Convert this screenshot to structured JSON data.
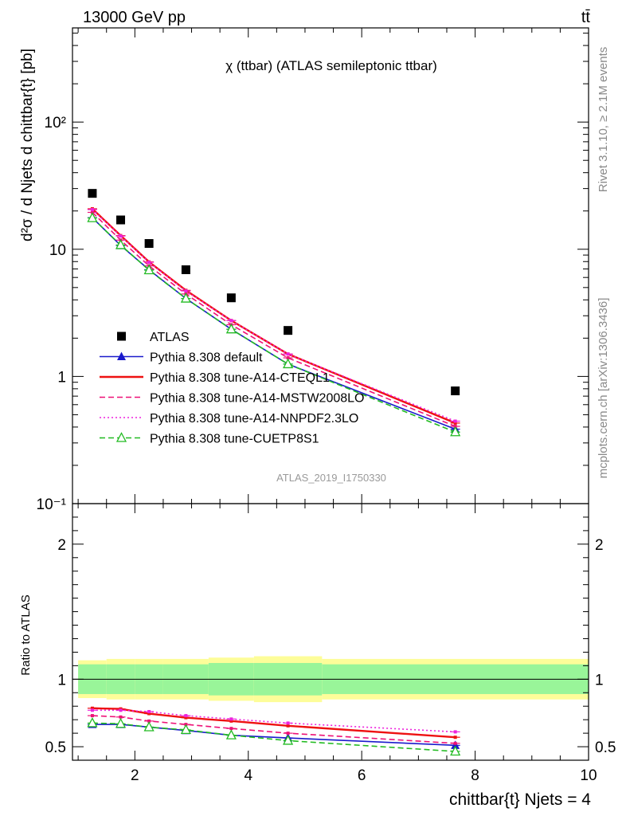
{
  "header": {
    "energy_label": "13000 GeV pp",
    "process_label": "tt̄"
  },
  "side_labels": {
    "rivet": "Rivet 3.1.10, ≥ 2.1M events",
    "mcplots": "mcplots.cern.ch [arXiv:1306.3436]"
  },
  "chart_data": [
    {
      "type": "line",
      "panel": "main",
      "title": "χ (ttbar) (ATLAS semileptonic ttbar)",
      "watermark": "ATLAS_2019_I1750330",
      "ylabel": "d²σ / d Njets d chittbar{t} [pb]",
      "yscale": "log",
      "ylim": [
        0.1,
        550
      ],
      "xlim": [
        0.9,
        10.0
      ],
      "ytick_labels": [
        "10⁻¹",
        "1",
        "10",
        "10²"
      ],
      "legend_position": "lower-left",
      "x": [
        1.25,
        1.75,
        2.25,
        2.9,
        3.7,
        4.7,
        7.65
      ],
      "series": [
        {
          "name": "ATLAS",
          "style": "data",
          "color": "#000000",
          "marker": "square",
          "values": [
            27.5,
            17.0,
            11.1,
            6.9,
            4.15,
            2.3,
            0.77
          ]
        },
        {
          "name": "Pythia 8.308 default",
          "style": "solid",
          "color": "#1a1acc",
          "marker": "triangle",
          "values": [
            17.7,
            10.7,
            6.9,
            4.1,
            2.35,
            1.25,
            0.385
          ]
        },
        {
          "name": "Pythia 8.308 tune-A14-CTEQL1",
          "style": "solid",
          "color": "#ee1111",
          "marker": "none",
          "values": [
            20.8,
            12.8,
            7.95,
            4.75,
            2.75,
            1.5,
            0.43
          ]
        },
        {
          "name": "Pythia 8.308 tune-A14-MSTW2008LO",
          "style": "dashed",
          "color": "#ee1177",
          "marker": "none",
          "values": [
            19.5,
            11.8,
            7.4,
            4.45,
            2.55,
            1.4,
            0.405
          ]
        },
        {
          "name": "Pythia 8.308 tune-A14-NNPDF2.3LO",
          "style": "dotted",
          "color": "#ee22dd",
          "marker": "none",
          "values": [
            20.5,
            12.7,
            7.9,
            4.7,
            2.75,
            1.5,
            0.445
          ]
        },
        {
          "name": "Pythia 8.308 tune-CUETP8S1",
          "style": "dashed",
          "color": "#22bb22",
          "marker": "open-triangle",
          "values": [
            17.6,
            10.8,
            6.85,
            4.1,
            2.35,
            1.25,
            0.365
          ]
        }
      ]
    },
    {
      "type": "line",
      "panel": "ratio",
      "ylabel": "Ratio to ATLAS",
      "xlabel": "chittbar{t} Njets = 4",
      "ylim": [
        0.4,
        2.3
      ],
      "xlim": [
        0.9,
        10.0
      ],
      "xticks": [
        2,
        4,
        6,
        8,
        10
      ],
      "yticks": [
        0.5,
        1,
        2
      ],
      "bands": {
        "bin_edges": [
          1.0,
          1.5,
          2.0,
          2.5,
          3.3,
          4.1,
          5.3,
          10.0
        ],
        "stat_half_width": [
          0.11,
          0.11,
          0.11,
          0.11,
          0.12,
          0.12,
          0.11
        ],
        "total_half_width": [
          0.14,
          0.15,
          0.15,
          0.15,
          0.16,
          0.17,
          0.15
        ],
        "inner_color": "#99f599",
        "outer_color": "#fdfd99"
      },
      "x": [
        1.25,
        1.75,
        2.25,
        2.9,
        3.7,
        4.7,
        7.65
      ],
      "series": [
        {
          "name": "Pythia 8.308 default",
          "style": "solid",
          "color": "#1a1acc",
          "marker": "triangle",
          "values": [
            0.665,
            0.665,
            0.645,
            0.62,
            0.585,
            0.565,
            0.51
          ]
        },
        {
          "name": "Pythia 8.308 tune-A14-CTEQL1",
          "style": "solid",
          "color": "#ee1111",
          "marker": "none",
          "values": [
            0.785,
            0.78,
            0.745,
            0.715,
            0.69,
            0.655,
            0.57
          ]
        },
        {
          "name": "Pythia 8.308 tune-A14-MSTW2008LO",
          "style": "dashed",
          "color": "#ee1177",
          "marker": "none",
          "values": [
            0.73,
            0.72,
            0.69,
            0.665,
            0.635,
            0.6,
            0.525
          ]
        },
        {
          "name": "Pythia 8.308 tune-A14-NNPDF2.3LO",
          "style": "dotted",
          "color": "#ee22dd",
          "marker": "none",
          "values": [
            0.77,
            0.77,
            0.76,
            0.73,
            0.705,
            0.675,
            0.61
          ]
        },
        {
          "name": "Pythia 8.308 tune-CUETP8S1",
          "style": "dashed",
          "color": "#22bb22",
          "marker": "open-triangle",
          "values": [
            0.675,
            0.67,
            0.645,
            0.625,
            0.585,
            0.545,
            0.465
          ]
        }
      ]
    }
  ]
}
